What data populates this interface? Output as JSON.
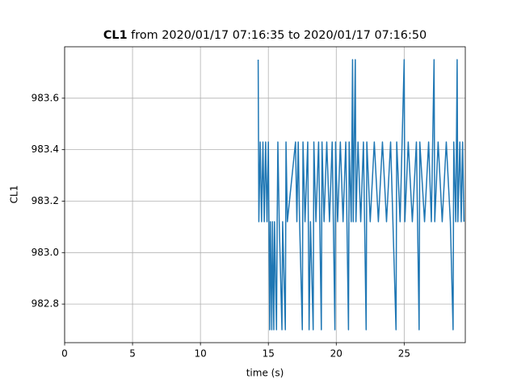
{
  "chart_data": {
    "type": "line",
    "title": {
      "bold": "CL1",
      "rest": "from 2020/01/17 07:16:35 to 2020/01/17 07:16:50"
    },
    "xlabel": "time (s)",
    "ylabel": "CL1",
    "xlim": [
      0,
      29.5
    ],
    "ylim": [
      982.65,
      983.8
    ],
    "xticks": [
      0,
      5,
      10,
      15,
      20,
      25
    ],
    "yticks": [
      982.8,
      {
        "value": 983,
        "label": "983.0"
      },
      983.2,
      983.4,
      983.6
    ],
    "grid": true,
    "x": [
      14.25,
      14.3,
      14.4,
      14.5,
      14.6,
      14.7,
      14.8,
      14.9,
      15.0,
      15.1,
      15.15,
      15.25,
      15.3,
      15.4,
      15.45,
      15.6,
      15.65,
      15.7,
      15.8,
      16.0,
      16.05,
      16.25,
      16.3,
      16.4,
      17.0,
      17.1,
      17.2,
      17.3,
      17.5,
      17.55,
      17.7,
      17.9,
      18.0,
      18.1,
      18.3,
      18.35,
      18.5,
      18.7,
      18.9,
      18.95,
      19.1,
      19.3,
      19.5,
      19.7,
      19.9,
      19.95,
      20.1,
      20.3,
      20.5,
      20.7,
      20.9,
      20.95,
      21.1,
      21.2,
      21.25,
      21.4,
      21.45,
      21.6,
      21.8,
      22.0,
      22.2,
      22.25,
      22.5,
      22.8,
      23.1,
      23.4,
      23.7,
      24.0,
      24.4,
      24.45,
      24.7,
      25.0,
      25.05,
      25.3,
      25.6,
      25.9,
      26.1,
      26.15,
      26.5,
      26.8,
      27.0,
      27.2,
      27.25,
      27.5,
      27.8,
      28.1,
      28.4,
      28.6,
      28.65,
      28.8,
      28.9,
      28.95,
      29.1,
      29.2,
      29.3,
      29.4
    ],
    "series": [
      {
        "color": "#1f77b4",
        "values": [
          983.75,
          983.12,
          983.43,
          983.12,
          983.43,
          983.12,
          983.43,
          983.12,
          983.43,
          982.7,
          983.12,
          982.7,
          983.12,
          982.7,
          983.12,
          982.7,
          983.12,
          983.43,
          983.12,
          982.7,
          983.12,
          982.7,
          983.43,
          983.12,
          983.43,
          983.12,
          983.43,
          983.12,
          982.7,
          983.43,
          983.12,
          983.43,
          982.7,
          983.12,
          982.7,
          983.43,
          983.12,
          983.43,
          982.7,
          983.43,
          983.12,
          983.43,
          983.12,
          983.43,
          982.7,
          983.43,
          983.12,
          983.43,
          983.12,
          983.43,
          982.7,
          983.43,
          983.12,
          983.75,
          983.12,
          983.75,
          983.12,
          983.43,
          983.12,
          983.43,
          982.7,
          983.43,
          983.12,
          983.43,
          983.12,
          983.43,
          983.12,
          983.43,
          982.7,
          983.43,
          983.12,
          983.75,
          983.12,
          983.43,
          983.12,
          983.43,
          982.7,
          983.43,
          983.12,
          983.43,
          983.12,
          983.75,
          983.12,
          983.43,
          983.12,
          983.43,
          983.12,
          982.7,
          983.43,
          983.12,
          983.75,
          983.12,
          983.43,
          983.12,
          983.43,
          983.12
        ]
      }
    ]
  }
}
